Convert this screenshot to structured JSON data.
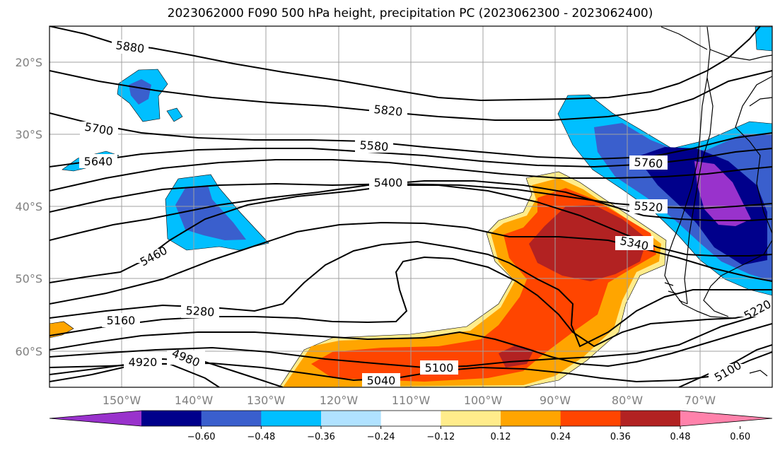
{
  "title": "2023062000 F090 500 hPa height, precipitation PC (2023062300 - 2023062400)",
  "map": {
    "lat_ticks": [
      {
        "value": -20,
        "label": "20°S"
      },
      {
        "value": -30,
        "label": "30°S"
      },
      {
        "value": -40,
        "label": "40°S"
      },
      {
        "value": -50,
        "label": "50°S"
      },
      {
        "value": -60,
        "label": "60°S"
      }
    ],
    "lon_ticks": [
      {
        "value": -150,
        "label": "150°W"
      },
      {
        "value": -140,
        "label": "140°W"
      },
      {
        "value": -130,
        "label": "130°W"
      },
      {
        "value": -120,
        "label": "120°W"
      },
      {
        "value": -110,
        "label": "110°W"
      },
      {
        "value": -100,
        "label": "100°W"
      },
      {
        "value": -90,
        "label": "90°W"
      },
      {
        "value": -80,
        "label": "80°W"
      },
      {
        "value": -70,
        "label": "70°W"
      }
    ],
    "extent": {
      "lon_min": -160,
      "lon_max": -60,
      "lat_min": -65,
      "lat_max": -15
    },
    "grid": true,
    "contour_labels": [
      "5880",
      "5820",
      "5700",
      "5640",
      "5580",
      "5400",
      "5760",
      "5520",
      "5340",
      "5460",
      "5280",
      "5160",
      "4920",
      "4980",
      "5100",
      "5040",
      "5220",
      "5100"
    ]
  },
  "colorbar": {
    "extend": "both",
    "tick_labels": [
      "-0.60",
      "-0.48",
      "-0.36",
      "-0.24",
      "-0.12",
      "0.12",
      "0.24",
      "0.36",
      "0.48",
      "0.60"
    ],
    "colors": [
      "#9932cc",
      "#00008b",
      "#3a5fcd",
      "#00bfff",
      "#b0e2ff",
      "#ffffff",
      "#ffec8b",
      "#ffa500",
      "#ff4500",
      "#b22222",
      "#ff82ab"
    ]
  }
}
